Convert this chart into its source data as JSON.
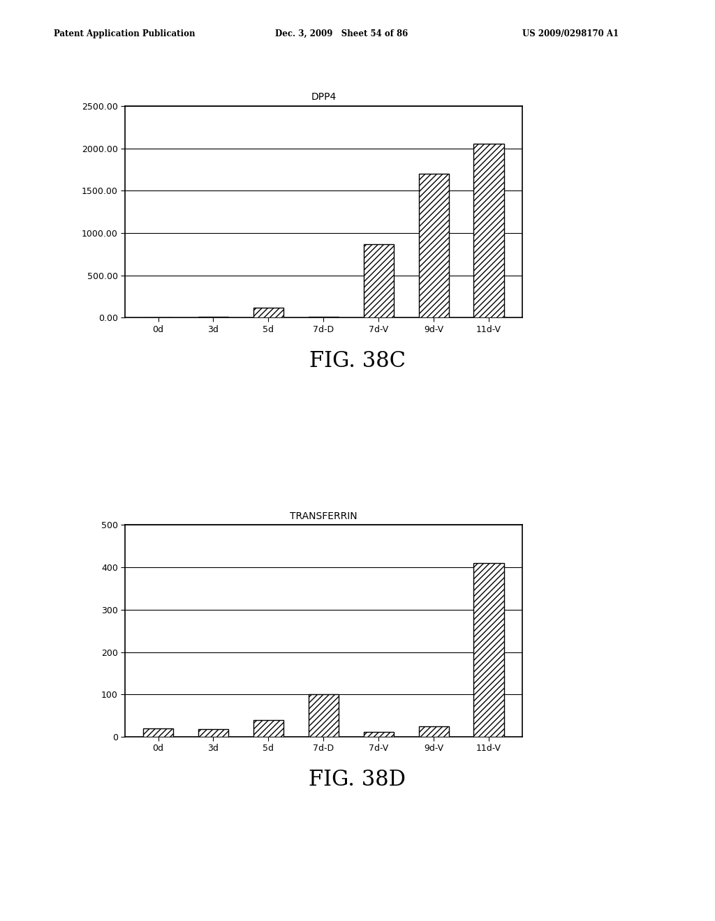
{
  "chart1": {
    "title": "DPP4",
    "categories": [
      "0d",
      "3d",
      "5d",
      "7d-D",
      "7d-V",
      "9d-V",
      "11d-V"
    ],
    "values": [
      5,
      8,
      120,
      10,
      870,
      1700,
      2050
    ],
    "ylim": [
      0,
      2500
    ],
    "yticks": [
      0.0,
      500.0,
      1000.0,
      1500.0,
      2000.0,
      2500.0
    ],
    "ytick_labels": [
      "0.00",
      "500.00",
      "1000.00",
      "1500.00",
      "2000.00",
      "2500.00"
    ],
    "fig_label": "FIG. 38C",
    "hatch_bars": [
      2,
      4,
      5,
      6
    ]
  },
  "chart2": {
    "title": "TRANSFERRIN",
    "categories": [
      "0d",
      "3d",
      "5d",
      "7d-D",
      "7d-V",
      "9d-V",
      "11d-V"
    ],
    "values": [
      20,
      18,
      40,
      100,
      12,
      25,
      410
    ],
    "ylim": [
      0,
      500
    ],
    "yticks": [
      0,
      100,
      200,
      300,
      400,
      500
    ],
    "ytick_labels": [
      "0",
      "100",
      "200",
      "300",
      "400",
      "500"
    ],
    "fig_label": "FIG. 38D",
    "hatch_bars": [
      0,
      1,
      2,
      3,
      4,
      5,
      6
    ]
  },
  "background_color": "#ffffff",
  "bar_color": "#ffffff",
  "bar_edgecolor": "#000000",
  "hatch_pattern": "////",
  "solid_color": "#111111",
  "title_fontsize": 10,
  "tick_fontsize": 9,
  "fig_label_fontsize": 22,
  "bar_width": 0.55,
  "grid_color": "#000000",
  "grid_linewidth": 0.8,
  "header_left": "Patent Application Publication",
  "header_mid": "Dec. 3, 2009   Sheet 54 of 86",
  "header_right": "US 2009/0298170 A1"
}
